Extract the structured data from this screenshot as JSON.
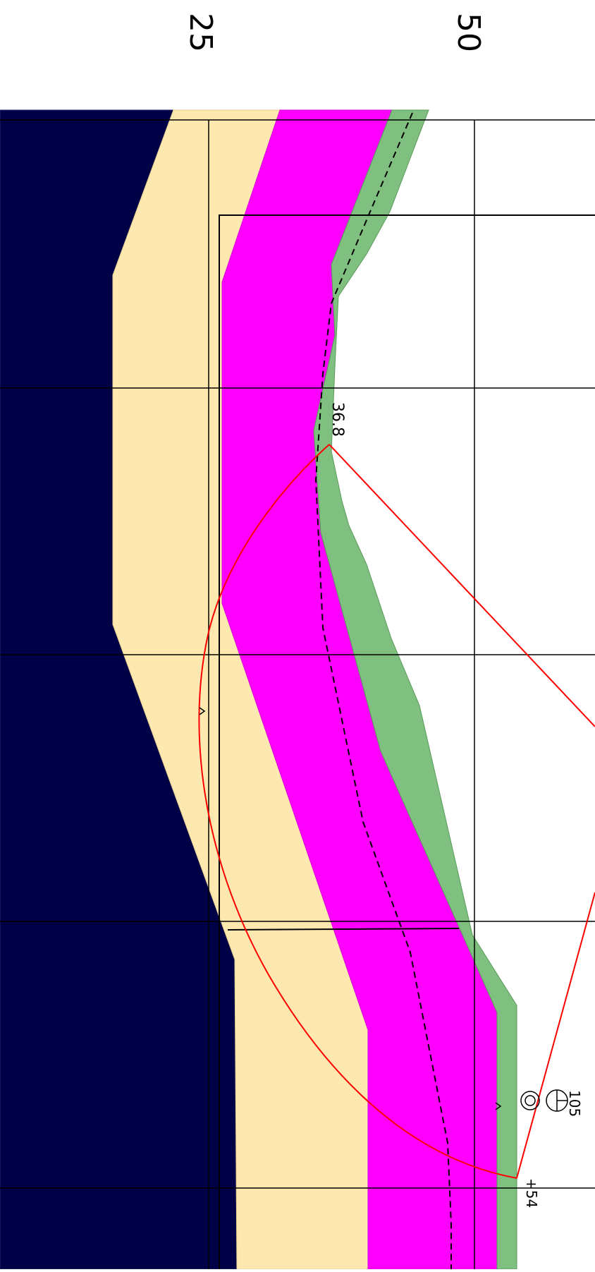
{
  "scale": {
    "label_25": "25",
    "label_50": "50"
  },
  "labels": {
    "slip_center_elevation": "36.8",
    "tick_chainage": "+54",
    "marker_number": "105"
  },
  "colors": {
    "bedrock": "#000046",
    "sand": "#FDE8B0",
    "clay": "#FF00FF",
    "topsoil": "#7FBF7F",
    "slip_surface": "#FF0000",
    "water_table": "#000000",
    "grid": "#000000"
  },
  "icons": {
    "marker_symbol": "benchmark-icon"
  }
}
